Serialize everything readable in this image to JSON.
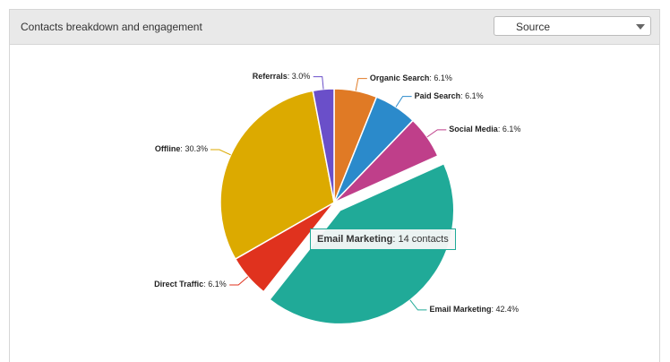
{
  "header": {
    "title": "Contacts breakdown and engagement",
    "dropdown": "Source"
  },
  "chart_data": {
    "type": "pie",
    "categories": [
      "Organic Search",
      "Paid Search",
      "Social Media",
      "Email Marketing",
      "Direct Traffic",
      "Offline",
      "Referrals"
    ],
    "values": [
      6.1,
      6.1,
      6.1,
      42.4,
      6.1,
      30.3,
      3.0
    ],
    "value_labels": [
      "6.1%",
      "6.1%",
      "6.1%",
      "42.4%",
      "6.1%",
      "30.3%",
      "3.0%"
    ],
    "colors": [
      "#e07a25",
      "#2b8acb",
      "#bf3f8a",
      "#20aa98",
      "#e0321e",
      "#dcaa00",
      "#6a4fc9"
    ],
    "tooltip": {
      "title": "Email Marketing",
      "text": "14 contacts"
    }
  }
}
